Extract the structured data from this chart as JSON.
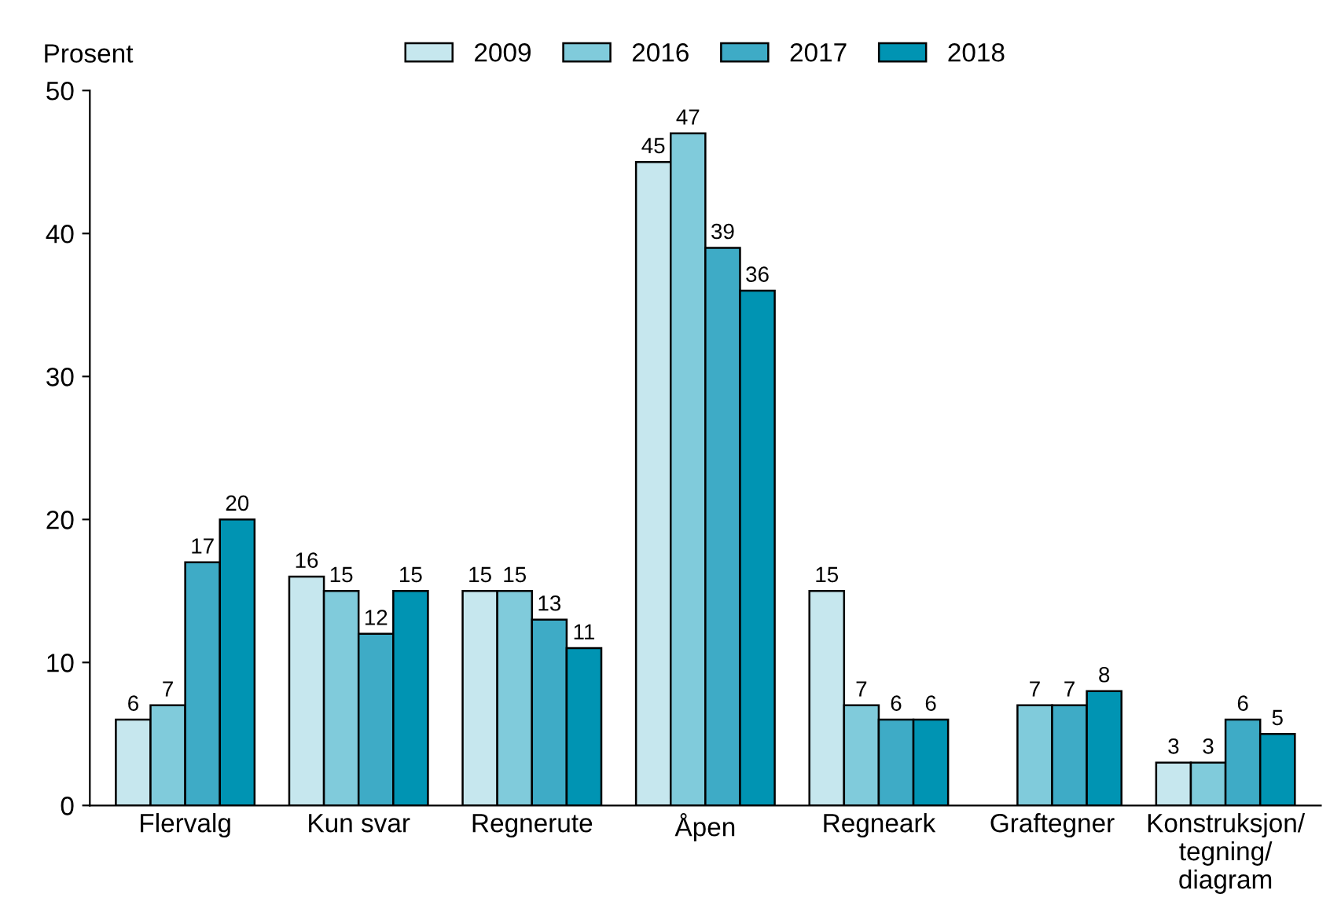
{
  "chart_data": {
    "type": "bar",
    "ylabel": "Prosent",
    "categories": [
      "Flervalg",
      "Kun svar",
      "Regnerute",
      "Åpen",
      "Regneark",
      "Graftegner",
      "Konstruksjon/\ntegning/\ndiagram"
    ],
    "series": [
      {
        "name": "2009",
        "color": "#c6e7ee",
        "values": [
          6,
          16,
          15,
          45,
          15,
          null,
          3
        ]
      },
      {
        "name": "2016",
        "color": "#80cbdb",
        "values": [
          7,
          15,
          15,
          47,
          7,
          7,
          3
        ]
      },
      {
        "name": "2017",
        "color": "#3eabc6",
        "values": [
          17,
          12,
          13,
          39,
          6,
          7,
          6
        ]
      },
      {
        "name": "2018",
        "color": "#0094b3",
        "values": [
          20,
          15,
          11,
          36,
          6,
          8,
          5
        ]
      }
    ],
    "ylim": [
      0,
      50
    ],
    "yticks": [
      0,
      10,
      20,
      30,
      40,
      50
    ],
    "grid": false,
    "legend": "top",
    "data_labels": true
  }
}
